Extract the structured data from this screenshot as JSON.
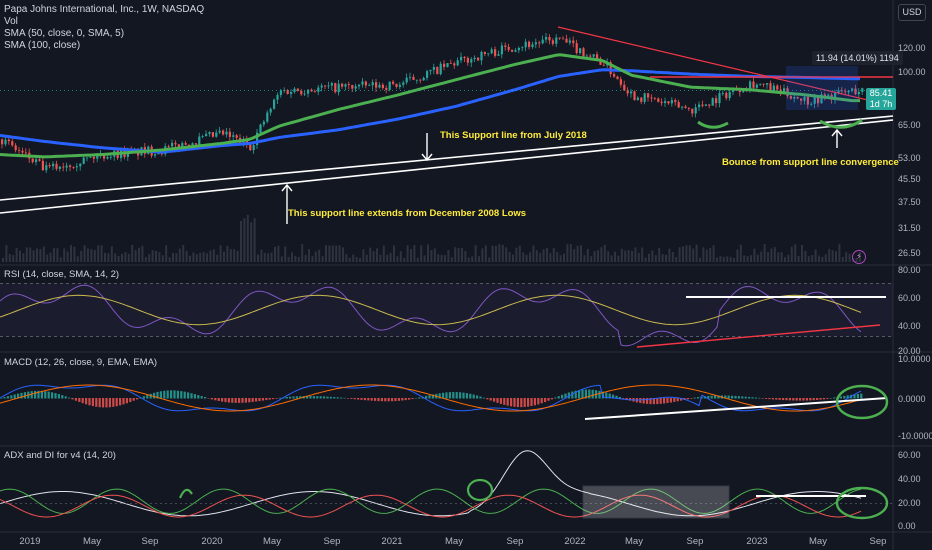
{
  "header": {
    "title": "Papa Johns International, Inc., 1W, NASDAQ",
    "vol": "Vol",
    "sma1": "SMA (50, close, 0, SMA, 5)",
    "sma2": "SMA (100, close)",
    "currency": "USD"
  },
  "measure_label": "11.94 (14.01%) 1194",
  "price_tag": {
    "price": "85.41",
    "countdown": "1d 7h"
  },
  "annotations": {
    "support_2018": "This Support line from July 2018",
    "support_2008": "This support line extends from December 2008 Lows",
    "bounce": "Bounce from support line convergence"
  },
  "panes": {
    "rsi": {
      "title": "RSI (14, close, SMA, 14, 2)",
      "ticks": [
        "80.00",
        "60.00",
        "40.00",
        "20.00"
      ]
    },
    "macd": {
      "title": "MACD (12, 26, close, 9, EMA, EMA)",
      "ticks": [
        "10.0000",
        "0.0000",
        "-10.0000"
      ]
    },
    "adx": {
      "title": "ADX and DI for v4 (14, 20)",
      "ticks": [
        "60.00",
        "40.00",
        "20.00",
        "0.00"
      ]
    }
  },
  "price_ticks": [
    "120.00",
    "100.00",
    "85.00",
    "65.00",
    "53.00",
    "45.50",
    "37.50",
    "31.50",
    "26.50"
  ],
  "x_labels": [
    "2019",
    "May",
    "Sep",
    "2020",
    "May",
    "Sep",
    "2021",
    "May",
    "Sep",
    "2022",
    "May",
    "Sep",
    "2023",
    "May",
    "Sep"
  ],
  "colors": {
    "background": "#131722",
    "up": "#26a69a",
    "down": "#ef5350",
    "sma50": "#4caf50",
    "sma100": "#2962ff",
    "support": "#ffffff",
    "resistance": "#f23645",
    "annotation": "#ffeb3b"
  },
  "chart_data": {
    "type": "candlestick",
    "scale": "log",
    "x": [
      "2018-10",
      "2019-01",
      "2019-05",
      "2019-09",
      "2020-01",
      "2020-03",
      "2020-05",
      "2020-09",
      "2021-01",
      "2021-05",
      "2021-09",
      "2021-12",
      "2022-03",
      "2022-05",
      "2022-09",
      "2023-01",
      "2023-05",
      "2023-08"
    ],
    "close": [
      55,
      42,
      48,
      50,
      58,
      52,
      85,
      88,
      90,
      110,
      128,
      135,
      110,
      82,
      72,
      92,
      78,
      85.41
    ],
    "sma50": [
      48,
      47,
      48,
      50,
      53,
      55,
      62,
      72,
      82,
      94,
      108,
      118,
      112,
      98,
      88,
      86,
      82,
      78
    ],
    "sma100": [
      57,
      54,
      51,
      49,
      52,
      53,
      56,
      60,
      66,
      74,
      86,
      97,
      103,
      102,
      99,
      97,
      96,
      95
    ],
    "last_price": 85.41
  }
}
